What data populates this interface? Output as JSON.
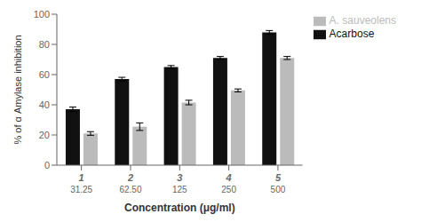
{
  "chart_data": {
    "type": "bar",
    "xlabel": "Concentration (μg/ml)",
    "ylabel": "% of α Amylase inhibition",
    "categories": [
      [
        "1",
        "31.25"
      ],
      [
        "2",
        "62.50"
      ],
      [
        "3",
        "125"
      ],
      [
        "4",
        "250"
      ],
      [
        "5",
        "500"
      ]
    ],
    "series": [
      {
        "name": "Acarbose",
        "color": "#111111",
        "values": [
          37.0,
          57.0,
          65.0,
          71.0,
          88.0
        ],
        "errors": [
          1.5,
          1.2,
          1.0,
          1.0,
          1.2
        ]
      },
      {
        "name": "A. sauveolens",
        "color": "#bbbbbb",
        "values": [
          21.0,
          25.5,
          41.5,
          49.5,
          71.0
        ],
        "errors": [
          1.2,
          2.5,
          1.5,
          1.0,
          1.0
        ]
      }
    ],
    "ylim": [
      0,
      100
    ],
    "yticks": [
      0,
      20,
      40,
      60,
      80,
      100
    ],
    "grid": false,
    "legend": "right"
  }
}
